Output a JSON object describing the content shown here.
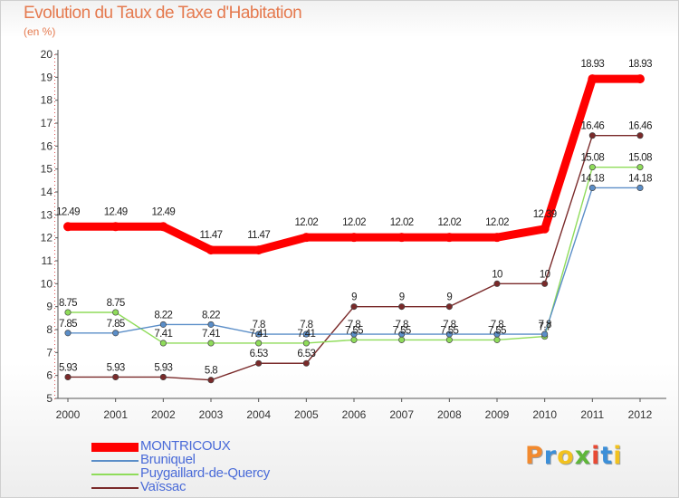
{
  "title": "Evolution du Taux de Taxe d'Habitation",
  "unit": "(en %)",
  "brand": {
    "letters": [
      "P",
      "r",
      "o",
      "x",
      "i",
      "t",
      "i"
    ],
    "colors": [
      "#f28a2f",
      "#3c8fd8",
      "#f2c21f",
      "#5fb63a",
      "#e84a34",
      "#3c8fd8",
      "#f2c21f"
    ]
  },
  "chart_data": {
    "type": "line",
    "x": [
      2000,
      2001,
      2002,
      2003,
      2004,
      2005,
      2006,
      2007,
      2008,
      2009,
      2010,
      2011,
      2012
    ],
    "ylim": [
      5,
      20
    ],
    "yticks": [
      5,
      6,
      7,
      8,
      9,
      10,
      11,
      12,
      13,
      14,
      15,
      16,
      17,
      18,
      19,
      20
    ],
    "grid": false,
    "legend_position": "bottom-left",
    "series": [
      {
        "name": "MONTRICOUX",
        "color": "#ff0000",
        "values": [
          12.49,
          12.49,
          12.49,
          11.47,
          11.47,
          12.02,
          12.02,
          12.02,
          12.02,
          12.02,
          12.39,
          18.93,
          18.93
        ],
        "labels": [
          "12.49",
          "12.49",
          "12.49",
          "11.47",
          "11.47",
          "12.02",
          "12.02",
          "12.02",
          "12.02",
          "12.02",
          "12.39",
          "18.93",
          "18.93"
        ]
      },
      {
        "name": "Bruniquel",
        "color": "#5b8ec8",
        "values": [
          7.85,
          7.85,
          8.22,
          8.22,
          7.8,
          7.8,
          7.8,
          7.8,
          7.8,
          7.8,
          7.8,
          14.18,
          14.18
        ],
        "labels": [
          "7.85",
          "7.85",
          "8.22",
          "8.22",
          "7.8",
          "7.8",
          "7.8",
          "7.8",
          "7.8",
          "7.8",
          "7.8",
          "14.18",
          "14.18"
        ]
      },
      {
        "name": "Puygaillard-de-Quercy",
        "color": "#8fdc5a",
        "values": [
          8.75,
          8.75,
          7.41,
          7.41,
          7.41,
          7.41,
          7.55,
          7.55,
          7.55,
          7.55,
          7.7,
          15.08,
          15.08
        ],
        "labels": [
          "8.75",
          "8.75",
          "7.41",
          "7.41",
          "7.41",
          "7.41",
          "7.55",
          "7.55",
          "7.55",
          "7.55",
          "7.7",
          "15.08",
          "15.08"
        ]
      },
      {
        "name": "Vaïssac",
        "color": "#7a2a2a",
        "values": [
          5.93,
          5.93,
          5.93,
          5.8,
          6.53,
          6.53,
          9,
          9,
          9,
          10,
          10,
          16.46,
          16.46
        ],
        "labels": [
          "5.93",
          "5.93",
          "5.93",
          "5.8",
          "6.53",
          "6.53",
          "9",
          "9",
          "9",
          "10",
          "10",
          "16.46",
          "16.46"
        ]
      }
    ]
  }
}
